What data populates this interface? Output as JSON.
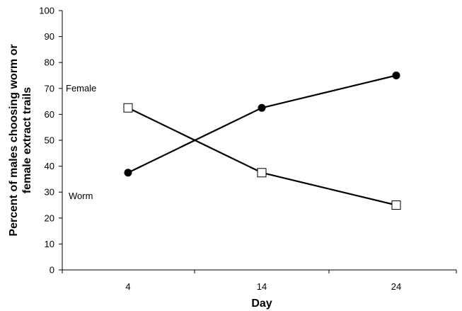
{
  "chart_data": {
    "type": "line",
    "categories": [
      "4",
      "14",
      "24"
    ],
    "series": [
      {
        "marker": "filled-circle",
        "color": "#000000",
        "values": [
          37.5,
          62.5,
          75
        ]
      },
      {
        "marker": "open-square",
        "color": "#000000",
        "values": [
          62.5,
          37.5,
          25
        ]
      }
    ],
    "annotations": [
      "Female",
      "Worm"
    ],
    "xlabel": "Day",
    "ylabel": [
      "Percent of males choosing worm or",
      "female extract trails"
    ],
    "ylim": [
      0,
      100
    ],
    "yticks": [
      "0",
      "10",
      "20",
      "30",
      "40",
      "50",
      "60",
      "70",
      "80",
      "90",
      "100"
    ],
    "grid": false
  }
}
